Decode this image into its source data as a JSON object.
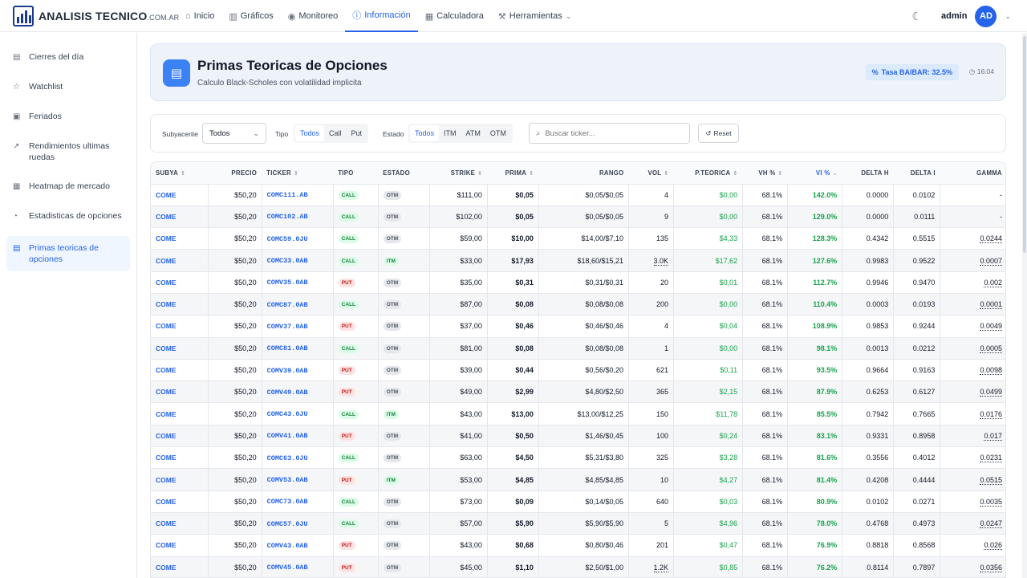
{
  "brand": {
    "name": "ANALISIS TECNICO",
    "suffix": ".COM.AR"
  },
  "nav": [
    {
      "label": "Inicio",
      "icon": "home-icon",
      "glyph": "⌂",
      "active": false
    },
    {
      "label": "Gráficos",
      "icon": "chart-icon",
      "glyph": "▥",
      "active": false
    },
    {
      "label": "Monitoreo",
      "icon": "eye-icon",
      "glyph": "◉",
      "active": false
    },
    {
      "label": "Información",
      "icon": "info-icon",
      "glyph": "ⓘ",
      "active": true
    },
    {
      "label": "Calculadora",
      "icon": "calculator-icon",
      "glyph": "▦",
      "active": false
    },
    {
      "label": "Herramientas",
      "icon": "wrench-icon",
      "glyph": "⚒",
      "active": false,
      "dropdown": true
    }
  ],
  "user": {
    "name": "admin",
    "initials": "AD"
  },
  "sidebar": [
    {
      "label": "Cierres del día",
      "icon": "calendar-icon",
      "glyph": "▤"
    },
    {
      "label": "Watchlist",
      "icon": "star-icon",
      "glyph": "☆"
    },
    {
      "label": "Feriados",
      "icon": "calendar-days-icon",
      "glyph": "▣"
    },
    {
      "label": "Rendimientos ultimas ruedas",
      "icon": "trend-icon",
      "glyph": "↗"
    },
    {
      "label": "Heatmap de mercado",
      "icon": "grid-icon",
      "glyph": "▦"
    },
    {
      "label": "Estadisticas de opciones",
      "icon": "pie-icon",
      "glyph": "◔"
    },
    {
      "label": "Primas teoricas de opciones",
      "icon": "calculator-icon",
      "glyph": "▤",
      "active": true
    }
  ],
  "header": {
    "title": "Primas Teoricas de Opciones",
    "subtitle": "Calculo Black-Scholes con volatilidad implicita",
    "rate": "Tasa BAIBAR: 32.5%",
    "time": "16:04"
  },
  "filters": {
    "subyacente_label": "Subyacente",
    "subyacente_value": "Todos",
    "tipo_label": "Tipo",
    "tipo_options": [
      "Todos",
      "Call",
      "Put"
    ],
    "estado_label": "Estado",
    "estado_options": [
      "Todos",
      "ITM",
      "ATM",
      "OTM"
    ],
    "search_placeholder": "Buscar ticker...",
    "reset_label": "Reset"
  },
  "columns": [
    "SUBYA",
    "PRECIO",
    "TICKER",
    "TIPO",
    "ESTADO",
    "STRIKE",
    "PRIMA",
    "RANGO",
    "VOL",
    "P.TEORICA",
    "VH %",
    "VI %",
    "DELTA H",
    "DELTA I",
    "GAMMA"
  ],
  "rows": [
    [
      "COME",
      "$50,20",
      "COMC111.AB",
      "CALL",
      "OTM",
      "$111,00",
      "$0,05",
      "$0,05/$0,05",
      "4",
      "$0,00",
      "68.1%",
      "142.0%",
      "0.0000",
      "0.0102",
      "-"
    ],
    [
      "COME",
      "$50,20",
      "COMC102.AB",
      "CALL",
      "OTM",
      "$102,00",
      "$0,05",
      "$0,05/$0,05",
      "9",
      "$0,00",
      "68.1%",
      "129.0%",
      "0.0000",
      "0.0111",
      "-"
    ],
    [
      "COME",
      "$50,20",
      "COMC59.0JU",
      "CALL",
      "OTM",
      "$59,00",
      "$10,00",
      "$14,00/$7,10",
      "135",
      "$4,33",
      "68.1%",
      "128.3%",
      "0.4342",
      "0.5515",
      "0.0244"
    ],
    [
      "COME",
      "$50,20",
      "COMC33.0AB",
      "CALL",
      "ITM",
      "$33,00",
      "$17,93",
      "$18,60/$15,21",
      "3.0K",
      "$17,62",
      "68.1%",
      "127.6%",
      "0.9983",
      "0.9522",
      "0.0007"
    ],
    [
      "COME",
      "$50,20",
      "COMV35.0AB",
      "PUT",
      "OTM",
      "$35,00",
      "$0,31",
      "$0,31/$0,31",
      "20",
      "$0,01",
      "68.1%",
      "112.7%",
      "0.9946",
      "0.9470",
      "0.002"
    ],
    [
      "COME",
      "$50,20",
      "COMC87.0AB",
      "CALL",
      "OTM",
      "$87,00",
      "$0,08",
      "$0,08/$0,08",
      "200",
      "$0,00",
      "68.1%",
      "110.4%",
      "0.0003",
      "0.0193",
      "0.0001"
    ],
    [
      "COME",
      "$50,20",
      "COMV37.0AB",
      "PUT",
      "OTM",
      "$37,00",
      "$0,46",
      "$0,46/$0,46",
      "4",
      "$0,04",
      "68.1%",
      "108.9%",
      "0.9853",
      "0.9244",
      "0.0049"
    ],
    [
      "COME",
      "$50,20",
      "COMC81.0AB",
      "CALL",
      "OTM",
      "$81,00",
      "$0,08",
      "$0,08/$0,08",
      "1",
      "$0,00",
      "68.1%",
      "98.1%",
      "0.0013",
      "0.0212",
      "0.0005"
    ],
    [
      "COME",
      "$50,20",
      "COMV39.0AB",
      "PUT",
      "OTM",
      "$39,00",
      "$0,44",
      "$0,56/$0,20",
      "621",
      "$0,11",
      "68.1%",
      "93.5%",
      "0.9664",
      "0.9163",
      "0.0098"
    ],
    [
      "COME",
      "$50,20",
      "COMV49.0AB",
      "PUT",
      "OTM",
      "$49,00",
      "$2,99",
      "$4,80/$2,50",
      "365",
      "$2,15",
      "68.1%",
      "87.9%",
      "0.6253",
      "0.6127",
      "0.0499"
    ],
    [
      "COME",
      "$50,20",
      "COMC43.0JU",
      "CALL",
      "ITM",
      "$43,00",
      "$13,00",
      "$13,00/$12,25",
      "150",
      "$11,78",
      "68.1%",
      "85.5%",
      "0.7942",
      "0.7665",
      "0.0176"
    ],
    [
      "COME",
      "$50,20",
      "COMV41.0AB",
      "PUT",
      "OTM",
      "$41,00",
      "$0,50",
      "$1,46/$0,45",
      "100",
      "$0,24",
      "68.1%",
      "83.1%",
      "0.9331",
      "0.8958",
      "0.017"
    ],
    [
      "COME",
      "$50,20",
      "COMC63.0JU",
      "CALL",
      "OTM",
      "$63,00",
      "$4,50",
      "$5,31/$3,80",
      "325",
      "$3,28",
      "68.1%",
      "81.6%",
      "0.3556",
      "0.4012",
      "0.0231"
    ],
    [
      "COME",
      "$50,20",
      "COMV53.0AB",
      "PUT",
      "ITM",
      "$53,00",
      "$4,85",
      "$4,85/$4,85",
      "10",
      "$4,27",
      "68.1%",
      "81.4%",
      "0.4208",
      "0.4444",
      "0.0515"
    ],
    [
      "COME",
      "$50,20",
      "COMC73.0AB",
      "CALL",
      "OTM",
      "$73,00",
      "$0,09",
      "$0,14/$0,05",
      "640",
      "$0,03",
      "68.1%",
      "80.9%",
      "0.0102",
      "0.0271",
      "0.0035"
    ],
    [
      "COME",
      "$50,20",
      "COMC57.0JU",
      "CALL",
      "OTM",
      "$57,00",
      "$5,90",
      "$5,90/$5,90",
      "5",
      "$4,96",
      "68.1%",
      "78.0%",
      "0.4768",
      "0.4973",
      "0.0247"
    ],
    [
      "COME",
      "$50,20",
      "COMV43.0AB",
      "PUT",
      "OTM",
      "$43,00",
      "$0,68",
      "$0,80/$0,46",
      "201",
      "$0,47",
      "68.1%",
      "76.9%",
      "0.8818",
      "0.8568",
      "0.026"
    ],
    [
      "COME",
      "$50,20",
      "COMV45.0AB",
      "PUT",
      "OTM",
      "$45,00",
      "$1,10",
      "$2,50/$1,00",
      "1.2K",
      "$0,85",
      "68.1%",
      "76.2%",
      "0.8114",
      "0.7897",
      "0.0356"
    ]
  ]
}
